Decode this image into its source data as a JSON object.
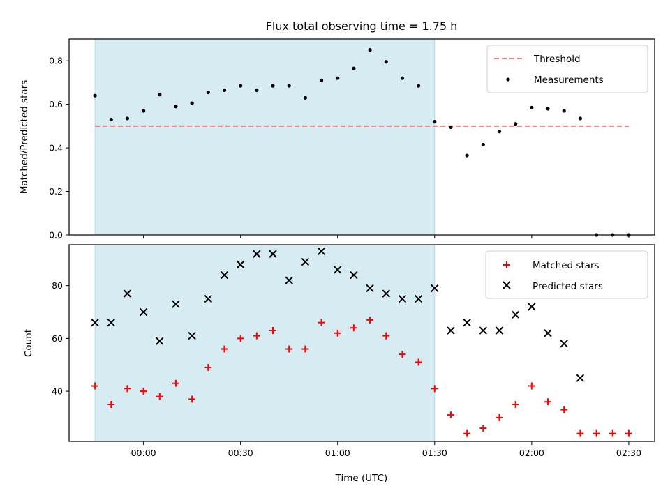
{
  "chart_data": [
    {
      "type": "scatter",
      "title": "Flux total observing time = 1.75 h",
      "xlabel": "",
      "ylabel": "Matched/Predicted stars",
      "x_unit": "minutes relative to 00:00 UTC",
      "xlim": [
        -23,
        158
      ],
      "ylim": [
        0,
        0.9
      ],
      "yticks": [
        0.0,
        0.2,
        0.4,
        0.6,
        0.8
      ],
      "ytick_labels": [
        "0.0",
        "0.2",
        "0.4",
        "0.6",
        "0.8"
      ],
      "shaded_span": {
        "x_start": -15,
        "x_end": 90,
        "color": "#add8e6"
      },
      "threshold": {
        "name": "Threshold",
        "y": 0.5,
        "x_start": -15,
        "x_end": 150,
        "color": "#f08080"
      },
      "series": [
        {
          "name": "Measurements",
          "color": "#000000",
          "x": [
            -15,
            -10,
            -5,
            0,
            5,
            10,
            15,
            20,
            25,
            30,
            35,
            40,
            45,
            50,
            55,
            60,
            65,
            70,
            75,
            80,
            85,
            90,
            95,
            100,
            105,
            110,
            115,
            120,
            125,
            130,
            135,
            140,
            145,
            150
          ],
          "y": [
            0.64,
            0.53,
            0.535,
            0.57,
            0.645,
            0.59,
            0.605,
            0.655,
            0.665,
            0.685,
            0.665,
            0.685,
            0.685,
            0.63,
            0.71,
            0.72,
            0.765,
            0.85,
            0.795,
            0.72,
            0.685,
            0.52,
            0.495,
            0.365,
            0.415,
            0.475,
            0.51,
            0.585,
            0.58,
            0.57,
            0.535,
            0.0,
            0.0,
            0.0
          ]
        }
      ],
      "legend": {
        "position": "top-right",
        "entries": [
          "Threshold",
          "Measurements"
        ]
      },
      "grid": false
    },
    {
      "type": "scatter",
      "title": "",
      "xlabel": "Time (UTC)",
      "ylabel": "Count",
      "x_unit": "minutes relative to 00:00 UTC",
      "xlim": [
        -23,
        158
      ],
      "ylim": [
        21,
        95.5
      ],
      "yticks": [
        40,
        60,
        80
      ],
      "ytick_labels": [
        "40",
        "60",
        "80"
      ],
      "xticks": [
        0,
        30,
        60,
        90,
        120,
        150
      ],
      "xtick_labels": [
        "00:00",
        "00:30",
        "01:00",
        "01:30",
        "02:00",
        "02:30"
      ],
      "shaded_span": {
        "x_start": -15,
        "x_end": 90,
        "color": "#add8e6"
      },
      "series": [
        {
          "name": "Matched stars",
          "marker": "plus",
          "color": "#ff0000",
          "x": [
            -15,
            -10,
            -5,
            0,
            5,
            10,
            15,
            20,
            25,
            30,
            35,
            40,
            45,
            50,
            55,
            60,
            65,
            70,
            75,
            80,
            85,
            90,
            95,
            100,
            105,
            110,
            115,
            120,
            125,
            130,
            135,
            140,
            145,
            150
          ],
          "y": [
            42,
            35,
            41,
            40,
            38,
            43,
            37,
            49,
            56,
            60,
            61,
            63,
            56,
            56,
            66,
            62,
            64,
            67,
            61,
            54,
            51,
            41,
            31,
            24,
            26,
            30,
            35,
            42,
            36,
            33,
            24,
            24,
            24,
            24
          ]
        },
        {
          "name": "Predicted stars",
          "marker": "x",
          "color": "#000000",
          "x": [
            -15,
            -10,
            -5,
            0,
            5,
            10,
            15,
            20,
            25,
            30,
            35,
            40,
            45,
            50,
            55,
            60,
            65,
            70,
            75,
            80,
            85,
            90,
            95,
            100,
            105,
            110,
            115,
            120,
            125,
            130,
            135
          ],
          "y": [
            66,
            66,
            77,
            70,
            59,
            73,
            61,
            75,
            84,
            88,
            92,
            92,
            82,
            89,
            93,
            86,
            84,
            79,
            77,
            75,
            75,
            79,
            63,
            66,
            63,
            63,
            69,
            72,
            62,
            58,
            45
          ]
        }
      ],
      "legend": {
        "position": "top-right",
        "entries": [
          "Matched stars",
          "Predicted stars"
        ]
      },
      "grid": false
    }
  ]
}
